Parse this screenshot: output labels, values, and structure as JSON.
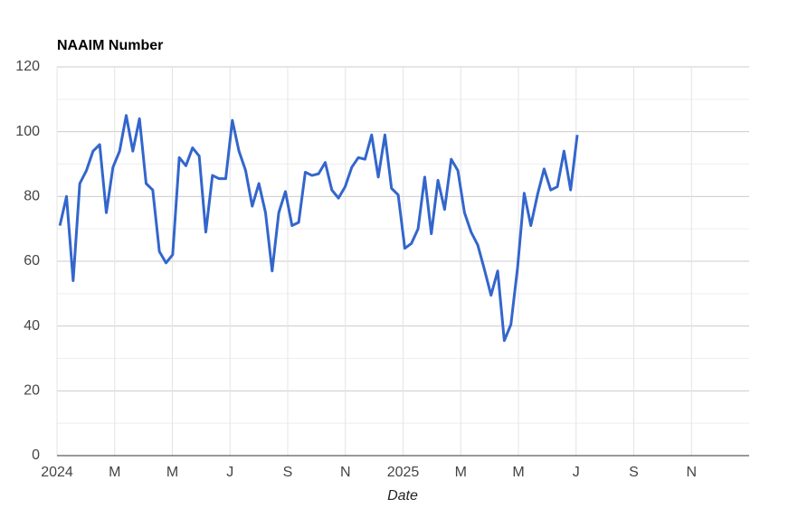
{
  "chart_data": {
    "type": "line",
    "title": "NAAIM Number",
    "xlabel": "Date",
    "x": [
      0.1,
      0.33,
      0.56,
      0.79,
      1.02,
      1.25,
      1.48,
      1.71,
      1.94,
      2.17,
      2.4,
      2.63,
      2.86,
      3.09,
      3.32,
      3.55,
      3.78,
      4.01,
      4.24,
      4.47,
      4.7,
      4.93,
      5.16,
      5.39,
      5.62,
      5.85,
      6.08,
      6.31,
      6.54,
      6.77,
      7,
      7.23,
      7.46,
      7.69,
      7.92,
      8.15,
      8.38,
      8.61,
      8.84,
      9.07,
      9.3,
      9.53,
      9.76,
      9.99,
      10.22,
      10.45,
      10.68,
      10.91,
      11.14,
      11.37,
      11.6,
      11.83,
      12.06,
      12.29,
      12.52,
      12.75,
      12.98,
      13.21,
      13.44,
      13.67,
      13.9,
      14.13,
      14.36,
      14.59,
      14.82,
      15.05,
      15.28,
      15.51,
      15.74,
      15.97,
      16.2,
      16.43,
      16.66,
      16.89,
      17.12,
      17.35,
      17.58,
      17.81,
      18.04
    ],
    "series": [
      {
        "name": "NAAIM Number",
        "color": "#3366cc",
        "values": [
          71,
          80,
          54,
          84,
          88,
          94,
          96,
          75,
          89,
          94,
          105,
          94,
          104,
          84,
          82,
          63,
          59.5,
          62,
          92,
          89.5,
          95,
          92.5,
          69,
          86.5,
          85.5,
          85.5,
          103.5,
          94,
          88,
          77,
          84,
          75,
          57,
          75,
          81.5,
          71,
          72,
          87.5,
          86.5,
          87,
          90.5,
          82,
          79.5,
          83,
          89,
          92,
          91.5,
          99,
          86,
          99,
          82.5,
          80.5,
          64,
          65.5,
          70,
          86,
          68.5,
          85,
          76,
          91.5,
          88,
          75,
          69,
          65,
          57.5,
          49.5,
          57,
          35.5,
          40.5,
          58,
          81,
          71,
          80.5,
          88.5,
          82,
          83,
          94,
          82,
          99
        ]
      }
    ],
    "xlim": [
      0,
      24
    ],
    "xticks": [
      {
        "value": 0,
        "label": "2024"
      },
      {
        "value": 2,
        "label": "M"
      },
      {
        "value": 4,
        "label": "M"
      },
      {
        "value": 6,
        "label": "J"
      },
      {
        "value": 8,
        "label": "S"
      },
      {
        "value": 10,
        "label": "N"
      },
      {
        "value": 12,
        "label": "2025"
      },
      {
        "value": 14,
        "label": "M"
      },
      {
        "value": 16,
        "label": "M"
      },
      {
        "value": 18,
        "label": "J"
      },
      {
        "value": 20,
        "label": "S"
      },
      {
        "value": 22,
        "label": "N"
      }
    ],
    "ylim": [
      0,
      120
    ],
    "yticks": [
      0,
      20,
      40,
      60,
      80,
      100,
      120
    ],
    "grid": true
  }
}
